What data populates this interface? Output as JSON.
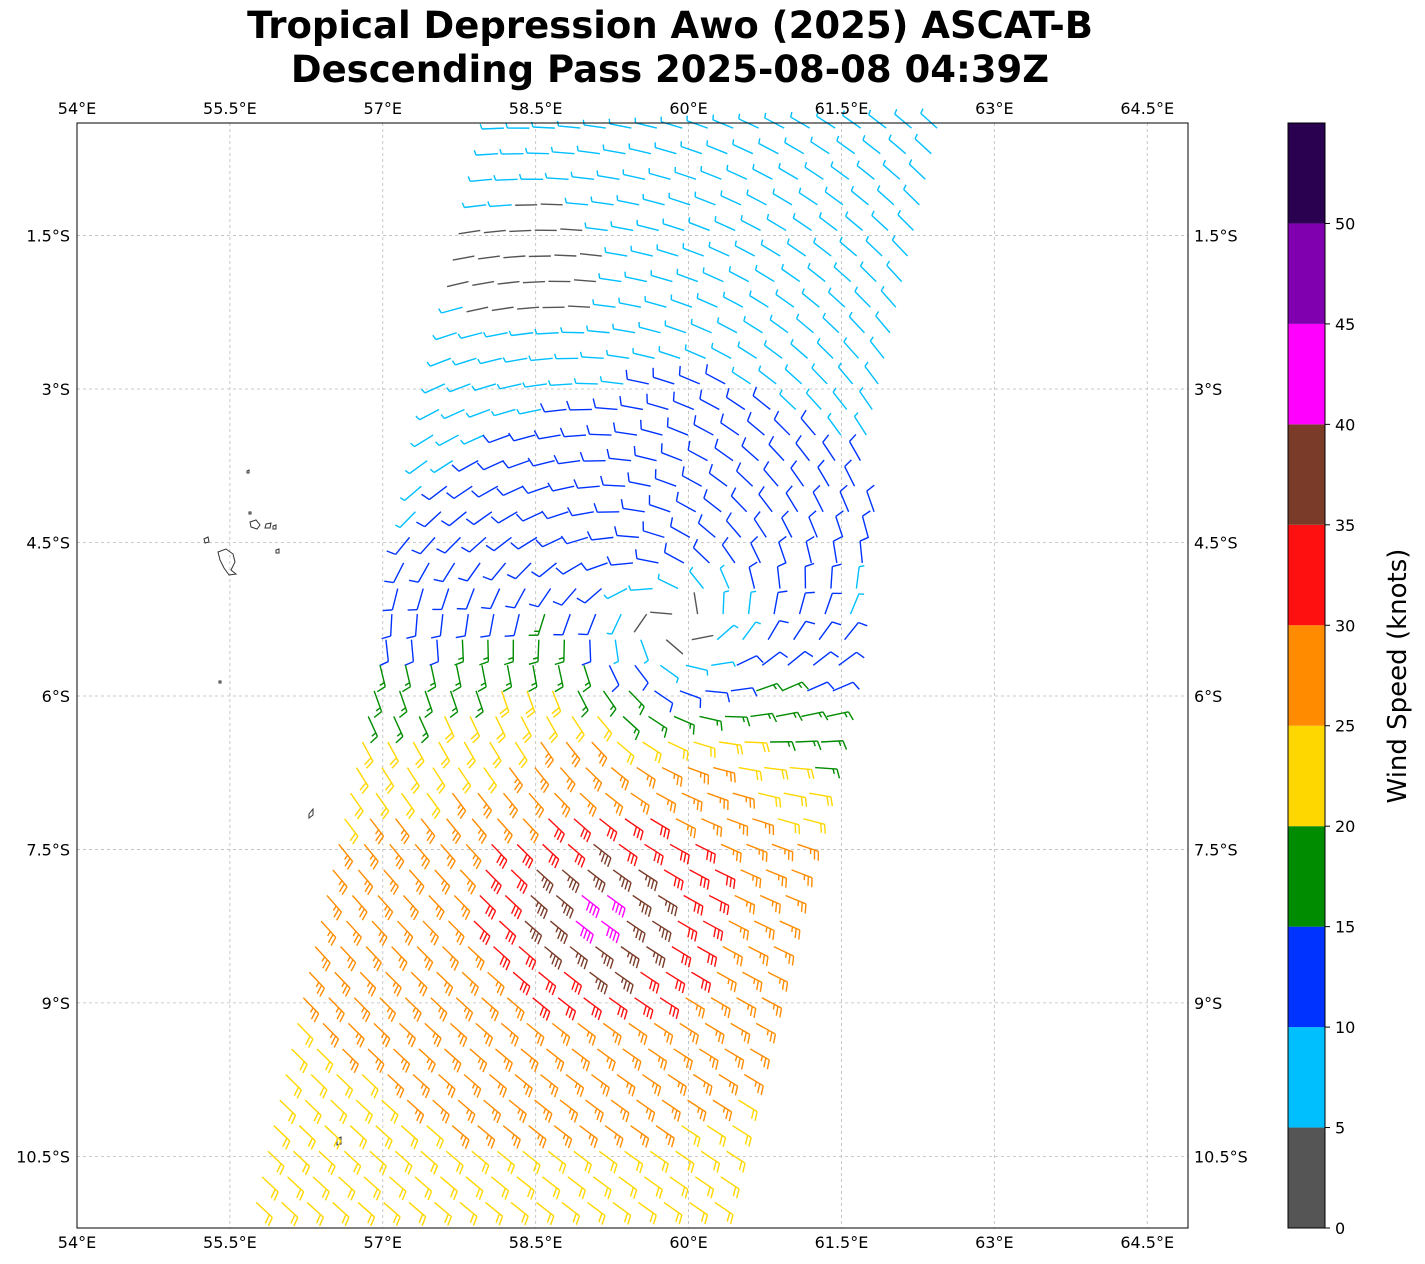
{
  "title": {
    "line1": "Tropical Depression Awo (2025) ASCAT-B",
    "line2": "Descending Pass 2025-08-08 04:39Z"
  },
  "map": {
    "lon_range": [
      54.0,
      64.9
    ],
    "lat_range": [
      -0.4,
      -11.2
    ],
    "lon_ticks": [
      "54°E",
      "55.5°E",
      "57°E",
      "58.5°E",
      "60°E",
      "61.5°E",
      "63°E",
      "64.5°E"
    ],
    "lat_ticks": [
      "1.5°S",
      "3°S",
      "4.5°S",
      "6°S",
      "7.5°S",
      "9°S",
      "10.5°S"
    ],
    "grid": true,
    "coastline_color": "#333333",
    "center": {
      "lon": 59.7,
      "lat": -5.6
    },
    "swath": {
      "top_lon_range": [
        58.2,
        62.6
      ],
      "bottom_lon_range": [
        55.7,
        60.4
      ]
    }
  },
  "colorbar": {
    "label": "Wind Speed (knots)",
    "ticks": [
      "0",
      "5",
      "10",
      "15",
      "20",
      "25",
      "30",
      "35",
      "40",
      "45",
      "50"
    ],
    "bins": [
      {
        "min": 0,
        "max": 5,
        "color": "#555555"
      },
      {
        "min": 5,
        "max": 10,
        "color": "#00bfff"
      },
      {
        "min": 10,
        "max": 15,
        "color": "#0033ff"
      },
      {
        "min": 15,
        "max": 20,
        "color": "#008c00"
      },
      {
        "min": 20,
        "max": 25,
        "color": "#ffd700"
      },
      {
        "min": 25,
        "max": 30,
        "color": "#ff8c00"
      },
      {
        "min": 30,
        "max": 35,
        "color": "#ff1010"
      },
      {
        "min": 35,
        "max": 40,
        "color": "#7a3b28"
      },
      {
        "min": 40,
        "max": 45,
        "color": "#ff00ff"
      },
      {
        "min": 45,
        "max": 50,
        "color": "#8000b0"
      },
      {
        "min": 50,
        "max": 55,
        "color": "#2a0050"
      }
    ]
  }
}
